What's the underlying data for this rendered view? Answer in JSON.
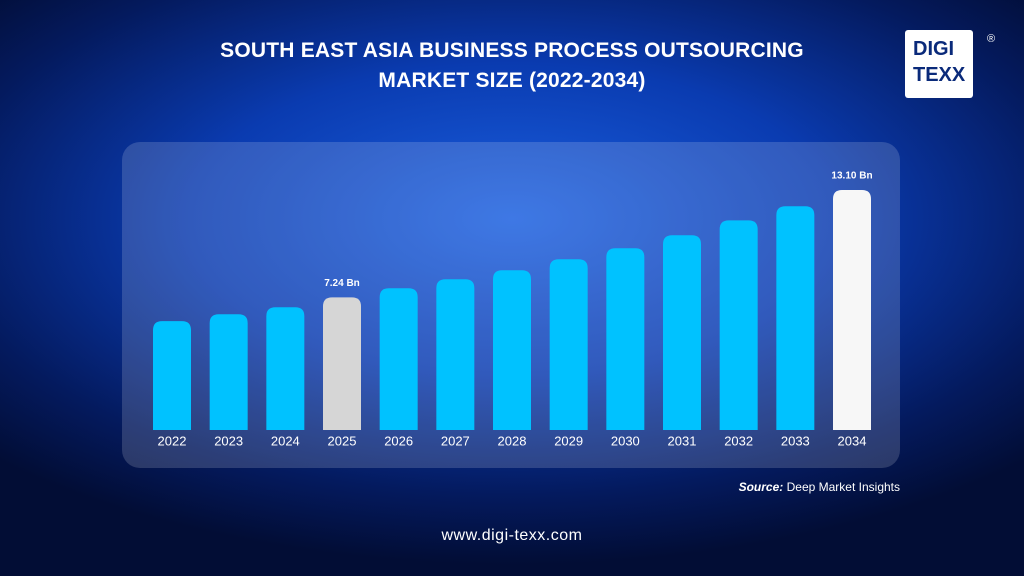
{
  "chart_data": {
    "type": "bar",
    "title": "SOUTH EAST ASIA BUSINESS PROCESS OUTSOURCING MARKET SIZE (2022-2034)",
    "categories": [
      "2022",
      "2023",
      "2024",
      "2025",
      "2026",
      "2027",
      "2028",
      "2029",
      "2030",
      "2031",
      "2032",
      "2033",
      "2034"
    ],
    "values": [
      5.94,
      6.32,
      6.7,
      7.24,
      7.74,
      8.23,
      8.72,
      9.32,
      9.92,
      10.63,
      11.44,
      12.21,
      13.1
    ],
    "value_labels": [
      null,
      null,
      null,
      "7.24 Bn",
      null,
      null,
      null,
      null,
      null,
      null,
      null,
      null,
      "13.10 Bn"
    ],
    "colors": [
      "#00c2ff",
      "#00c2ff",
      "#00c2ff",
      "#d6d6d6",
      "#00c2ff",
      "#00c2ff",
      "#00c2ff",
      "#00c2ff",
      "#00c2ff",
      "#00c2ff",
      "#00c2ff",
      "#00c2ff",
      "#f7f7f7"
    ]
  },
  "source": {
    "label": "Source:",
    "text": "Deep Market Insights"
  },
  "footer": "www.digi-texx.com",
  "logo": {
    "line1": "DIGI",
    "line2": "TEXX",
    "mark": "®"
  }
}
